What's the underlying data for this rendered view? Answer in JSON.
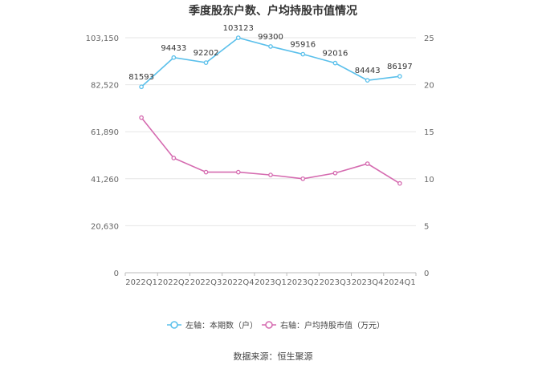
{
  "chart_data": {
    "type": "line",
    "title": "季度股东户数、户均持股市值情况",
    "categories": [
      "2022Q1",
      "2022Q2",
      "2022Q3",
      "2022Q4",
      "2023Q1",
      "2023Q2",
      "2023Q3",
      "2023Q4",
      "2024Q1"
    ],
    "series": [
      {
        "name": "左轴：本期数（户）",
        "axis": "left",
        "color": "#5bc0eb",
        "values": [
          81593,
          94433,
          92202,
          103123,
          99300,
          95916,
          92016,
          84443,
          86197
        ],
        "data_labels": [
          "81593",
          "94433",
          "92202",
          "103123",
          "99300",
          "95916",
          "92016",
          "84443",
          "86197"
        ]
      },
      {
        "name": "右轴：户均持股市值（万元）",
        "axis": "right",
        "color": "#d56bb0",
        "values": [
          16.5,
          12.2,
          10.7,
          10.7,
          10.4,
          10.0,
          10.6,
          11.6,
          9.5
        ]
      }
    ],
    "y_left": {
      "min": 0,
      "max": 103150,
      "ticks": [
        0,
        20630,
        41260,
        61890,
        82520,
        103150
      ],
      "tick_labels": [
        "0",
        "20,630",
        "41,260",
        "61,890",
        "82,520",
        "103,150"
      ]
    },
    "y_right": {
      "min": 0,
      "max": 25,
      "ticks": [
        0,
        5,
        10,
        15,
        20,
        25
      ],
      "tick_labels": [
        "0",
        "5",
        "10",
        "15",
        "20",
        "25"
      ]
    },
    "grid": true,
    "legend_position": "bottom"
  },
  "source": "数据来源：恒生聚源"
}
